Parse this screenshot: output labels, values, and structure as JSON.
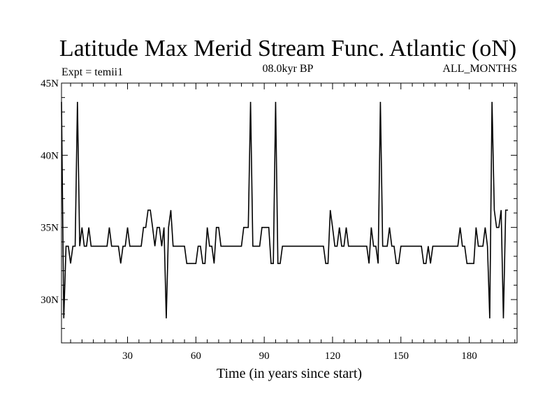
{
  "chart_data": {
    "type": "line",
    "title": "Latitude Max Merid Stream Func. Atlantic (oN)",
    "subtitle_left": "Expt = temii1",
    "subtitle_center": "08.0kyr BP",
    "subtitle_right": "ALL_MONTHS",
    "xlabel": "Time (in years since start)",
    "ylabel": "",
    "xlim": [
      1,
      201
    ],
    "ylim": [
      27,
      45
    ],
    "xticks": [
      30,
      60,
      90,
      120,
      150,
      180
    ],
    "xtick_labels": [
      "30",
      "60",
      "90",
      "120",
      "150",
      "180"
    ],
    "yticks": [
      30,
      35,
      40,
      45
    ],
    "ytick_labels": [
      "30N",
      "35N",
      "40N",
      "45N"
    ],
    "grid": false,
    "series": [
      {
        "values": [
          43.7,
          28.7,
          33.7,
          33.7,
          32.5,
          33.7,
          33.7,
          43.7,
          33.7,
          35,
          33.7,
          33.7,
          35,
          33.7,
          33.7,
          33.7,
          33.7,
          33.7,
          33.7,
          33.7,
          33.7,
          35,
          33.7,
          33.7,
          33.7,
          33.7,
          32.5,
          33.7,
          33.7,
          35,
          33.7,
          33.7,
          33.7,
          33.7,
          33.7,
          33.7,
          35,
          35,
          36.2,
          36.2,
          35,
          33.7,
          35,
          35,
          33.7,
          35,
          28.7,
          35,
          36.2,
          33.7,
          33.7,
          33.7,
          33.7,
          33.7,
          33.7,
          32.5,
          32.5,
          32.5,
          32.5,
          32.5,
          33.7,
          33.7,
          32.5,
          32.5,
          35,
          33.7,
          33.7,
          32.5,
          35,
          35,
          33.7,
          33.7,
          33.7,
          33.7,
          33.7,
          33.7,
          33.7,
          33.7,
          33.7,
          33.7,
          35,
          35,
          35,
          43.7,
          33.7,
          33.7,
          33.7,
          33.7,
          35,
          35,
          35,
          35,
          32.5,
          32.5,
          43.7,
          32.5,
          32.5,
          33.7,
          33.7,
          33.7,
          33.7,
          33.7,
          33.7,
          33.7,
          33.7,
          33.7,
          33.7,
          33.7,
          33.7,
          33.7,
          33.7,
          33.7,
          33.7,
          33.7,
          33.7,
          33.7,
          32.5,
          32.5,
          36.2,
          35,
          33.7,
          33.7,
          35,
          33.7,
          33.7,
          35,
          33.7,
          33.7,
          33.7,
          33.7,
          33.7,
          33.7,
          33.7,
          33.7,
          33.7,
          32.5,
          35,
          33.7,
          33.7,
          32.5,
          43.7,
          33.7,
          33.7,
          33.7,
          35,
          33.7,
          33.7,
          32.5,
          32.5,
          33.7,
          33.7,
          33.7,
          33.7,
          33.7,
          33.7,
          33.7,
          33.7,
          33.7,
          33.7,
          32.5,
          32.5,
          33.7,
          32.5,
          33.7,
          33.7,
          33.7,
          33.7,
          33.7,
          33.7,
          33.7,
          33.7,
          33.7,
          33.7,
          33.7,
          33.7,
          35,
          33.7,
          33.7,
          32.5,
          32.5,
          32.5,
          32.5,
          35,
          33.7,
          33.7,
          33.7,
          35,
          33.7,
          28.7,
          43.7,
          36.2,
          35,
          35,
          36.2,
          28.7,
          36.2,
          36.2
        ]
      }
    ]
  }
}
